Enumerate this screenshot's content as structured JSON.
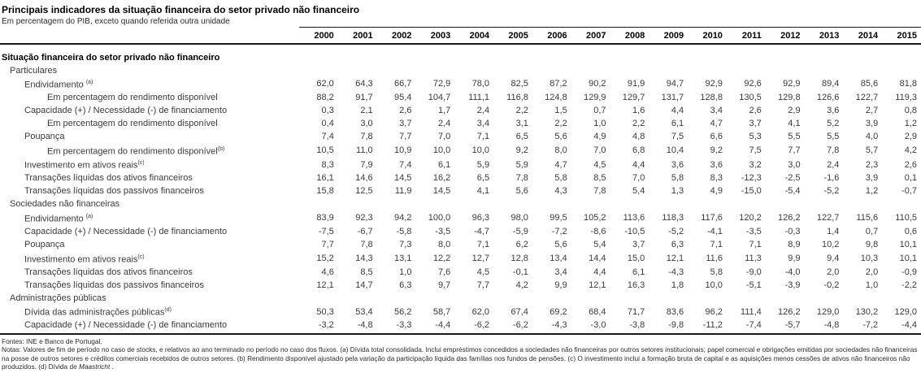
{
  "header": {
    "title": "Principais indicadores da situação financeira do setor privado não financeiro",
    "subtitle": "Em percentagem do PIB, exceto quando referida outra unidade"
  },
  "table": {
    "years": [
      "2000",
      "2001",
      "2002",
      "2003",
      "2004",
      "2005",
      "2006",
      "2007",
      "2008",
      "2009",
      "2010",
      "2011",
      "2012",
      "2013",
      "2014",
      "2015"
    ],
    "rows": [
      {
        "label": "Situação financeira do setor privado não financeiro",
        "indent": 0,
        "bold": true,
        "values": []
      },
      {
        "label": "Particulares",
        "indent": 1,
        "values": []
      },
      {
        "label": "Endividamento ",
        "sup": "(a)",
        "indent": 2,
        "values": [
          "62,0",
          "64,3",
          "66,7",
          "72,9",
          "78,0",
          "82,5",
          "87,2",
          "90,2",
          "91,9",
          "94,7",
          "92,9",
          "92,6",
          "92,9",
          "89,4",
          "85,6",
          "81,8"
        ]
      },
      {
        "label": "Em percentagem do rendimento disponível",
        "indent": 3,
        "values": [
          "88,2",
          "91,7",
          "95,4",
          "104,7",
          "111,1",
          "116,8",
          "124,8",
          "129,9",
          "129,7",
          "131,7",
          "128,8",
          "130,5",
          "129,8",
          "126,6",
          "122,7",
          "119,3"
        ]
      },
      {
        "label": "Capacidade (+) / Necessidade (-) de financiamento",
        "indent": 2,
        "values": [
          "0,3",
          "2,1",
          "2,6",
          "1,7",
          "2,4",
          "2,2",
          "1,5",
          "0,7",
          "1,6",
          "4,4",
          "3,4",
          "2,6",
          "2,9",
          "3,6",
          "2,7",
          "0,8"
        ]
      },
      {
        "label": "Em percentagem do rendimento disponível",
        "indent": 3,
        "values": [
          "0,4",
          "3,0",
          "3,7",
          "2,4",
          "3,4",
          "3,1",
          "2,2",
          "1,0",
          "2,2",
          "6,1",
          "4,7",
          "3,7",
          "4,1",
          "5,2",
          "3,9",
          "1,2"
        ]
      },
      {
        "label": "Poupança",
        "indent": 2,
        "values": [
          "7,4",
          "7,8",
          "7,7",
          "7,0",
          "7,1",
          "6,5",
          "5,6",
          "4,9",
          "4,8",
          "7,5",
          "6,6",
          "5,3",
          "5,5",
          "5,5",
          "4,0",
          "2,9"
        ]
      },
      {
        "label": "Em percentagem do rendimento disponível",
        "sup": "(b)",
        "indent": 3,
        "values": [
          "10,5",
          "11,0",
          "10,9",
          "10,0",
          "10,0",
          "9,2",
          "8,0",
          "7,0",
          "6,8",
          "10,4",
          "9,2",
          "7,5",
          "7,7",
          "7,8",
          "5,7",
          "4,2"
        ]
      },
      {
        "label": "Investimento em ativos reais",
        "sup": "(c)",
        "indent": 2,
        "values": [
          "8,3",
          "7,9",
          "7,4",
          "6,1",
          "5,9",
          "5,9",
          "4,7",
          "4,5",
          "4,4",
          "3,6",
          "3,6",
          "3,2",
          "3,0",
          "2,4",
          "2,3",
          "2,6"
        ]
      },
      {
        "label": "Transações líquidas dos ativos financeiros",
        "indent": 2,
        "values": [
          "16,1",
          "14,6",
          "14,5",
          "16,2",
          "6,5",
          "7,8",
          "5,8",
          "8,5",
          "7,0",
          "5,8",
          "8,3",
          "-12,3",
          "-2,5",
          "-1,6",
          "3,9",
          "0,1"
        ]
      },
      {
        "label": "Transações líquidas dos passivos financeiros",
        "indent": 2,
        "values": [
          "15,8",
          "12,5",
          "11,9",
          "14,5",
          "4,1",
          "5,6",
          "4,3",
          "7,8",
          "5,4",
          "1,3",
          "4,9",
          "-15,0",
          "-5,4",
          "-5,2",
          "1,2",
          "-0,7"
        ]
      },
      {
        "label": "Sociedades não financeiras",
        "indent": 1,
        "values": []
      },
      {
        "label": "Endividamento ",
        "sup": "(a)",
        "indent": 2,
        "values": [
          "83,9",
          "92,3",
          "94,2",
          "100,0",
          "96,3",
          "98,0",
          "99,5",
          "105,2",
          "113,6",
          "118,3",
          "117,6",
          "120,2",
          "126,2",
          "122,7",
          "115,6",
          "110,5"
        ]
      },
      {
        "label": "Capacidade (+) / Necessidade (-) de financiamento",
        "indent": 2,
        "values": [
          "-7,5",
          "-6,7",
          "-5,8",
          "-3,5",
          "-4,7",
          "-5,9",
          "-7,2",
          "-8,6",
          "-10,5",
          "-5,2",
          "-4,1",
          "-3,5",
          "-0,3",
          "1,4",
          "0,7",
          "0,6"
        ]
      },
      {
        "label": "Poupança",
        "indent": 2,
        "values": [
          "7,7",
          "7,8",
          "7,3",
          "8,0",
          "7,1",
          "6,2",
          "5,6",
          "5,4",
          "3,7",
          "6,3",
          "7,1",
          "7,1",
          "8,9",
          "10,2",
          "9,8",
          "10,1"
        ]
      },
      {
        "label": "Investimento em ativos reais",
        "sup": "(c)",
        "indent": 2,
        "values": [
          "15,2",
          "14,3",
          "13,1",
          "12,2",
          "12,7",
          "12,8",
          "13,4",
          "14,4",
          "15,0",
          "12,1",
          "11,6",
          "11,3",
          "9,9",
          "9,4",
          "10,3",
          "10,1"
        ]
      },
      {
        "label": "Transações líquidas dos ativos financeiros",
        "indent": 2,
        "values": [
          "4,6",
          "8,5",
          "1,0",
          "7,6",
          "4,5",
          "-0,1",
          "3,4",
          "4,4",
          "6,1",
          "-4,3",
          "5,8",
          "-9,0",
          "-4,0",
          "2,0",
          "2,0",
          "-0,9"
        ]
      },
      {
        "label": "Transações líquidas dos passivos financeiros",
        "indent": 2,
        "values": [
          "12,1",
          "14,7",
          "6,3",
          "9,7",
          "7,7",
          "4,2",
          "9,9",
          "12,1",
          "16,3",
          "1,8",
          "10,0",
          "-5,1",
          "-3,9",
          "-0,2",
          "1,0",
          "-2,2"
        ]
      },
      {
        "label": "Administrações públicas",
        "indent": 1,
        "values": []
      },
      {
        "label": "Dívida das administrações públicas",
        "sup": "(d)",
        "indent": 2,
        "values": [
          "50,3",
          "53,4",
          "56,2",
          "58,7",
          "62,0",
          "67,4",
          "69,2",
          "68,4",
          "71,7",
          "83,6",
          "96,2",
          "111,4",
          "126,2",
          "129,0",
          "130,2",
          "129,0"
        ]
      },
      {
        "label": "Capacidade (+) / Necessidade (-) de financiamento",
        "indent": 2,
        "values": [
          "-3,2",
          "-4,8",
          "-3,3",
          "-4,4",
          "-6,2",
          "-6,2",
          "-4,3",
          "-3,0",
          "-3,8",
          "-9,8",
          "-11,2",
          "-7,4",
          "-5,7",
          "-4,8",
          "-7,2",
          "-4,4"
        ]
      }
    ]
  },
  "footer": {
    "sources": "Fontes: INE e Banco de Portugal.",
    "notes_prefix": "Notas: Valores de fim de período no caso de stocks, e relativos ao ano terminado no período no caso dos fluxos. (a) Dívida total consolidada. Inclui empréstimos concedidos a sociedades não financeiras por outros setores institucionais; papel comercial e obrigações emitidas por sociedades não financeiras na posse de outros setores e créditos comerciais recebidos de outros setores. (b) Rendimento disponível ajustado pela variação da participação líquida das famílias nos fundos de pensões. (c) O investimento inclui a formação bruta de capital e as aquisições menos cessões de ativos não financeiros não produzidos. (d) Dívida de ",
    "notes_italic": "Maastricht",
    "notes_suffix": " ."
  }
}
